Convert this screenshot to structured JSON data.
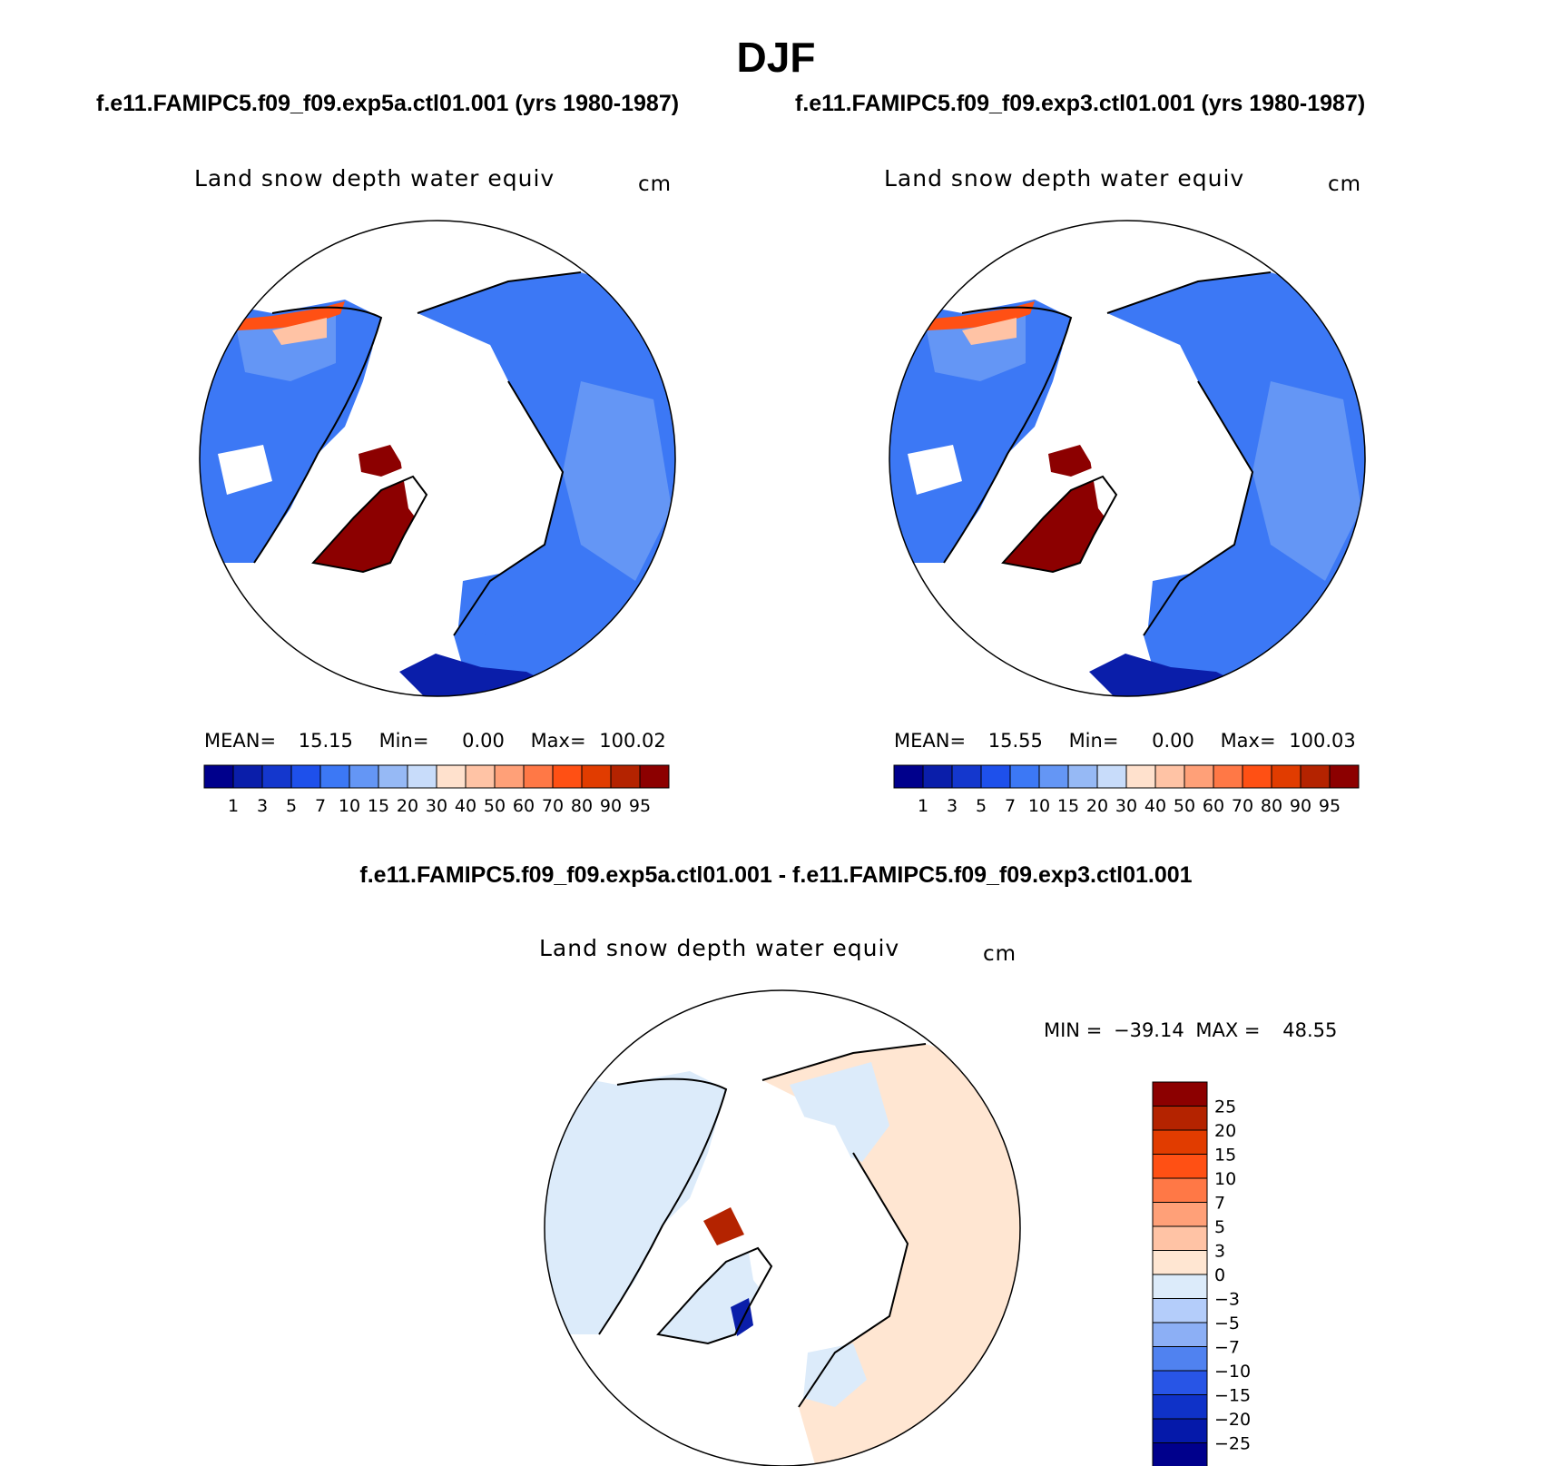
{
  "header": {
    "season": "DJF",
    "left_case": "f.e11.FAMIPC5.f09_f09.exp5a.ctl01.001 (yrs 1980-1987)",
    "right_case": "f.e11.FAMIPC5.f09_f09.exp3.ctl01.001 (yrs 1980-1987)",
    "diff_case": "f.e11.FAMIPC5.f09_f09.exp5a.ctl01.001 - f.e11.FAMIPC5.f09_f09.exp3.ctl01.001"
  },
  "panels": [
    {
      "id": "exp5a",
      "variable": "Land snow depth water equiv",
      "units": "cm",
      "stats": {
        "mean_label": "MEAN=",
        "mean": "15.15",
        "min_label": "Min=",
        "min": "0.00",
        "max_label": "Max=",
        "max": "100.02"
      }
    },
    {
      "id": "exp3",
      "variable": "Land snow depth water equiv",
      "units": "cm",
      "stats": {
        "mean_label": "MEAN=",
        "mean": "15.55",
        "min_label": "Min=",
        "min": "0.00",
        "max_label": "Max=",
        "max": "100.03"
      }
    }
  ],
  "diff_panel": {
    "variable": "Land snow depth water equiv",
    "units": "cm",
    "stats": {
      "min_label": "MIN =",
      "min": "−39.14",
      "max_label": "MAX =",
      "max": "48.55"
    }
  },
  "colorbar_abs": {
    "labels": [
      "1",
      "3",
      "5",
      "7",
      "10",
      "15",
      "20",
      "30",
      "40",
      "50",
      "60",
      "70",
      "80",
      "90",
      "95"
    ],
    "colors": [
      "#00008c",
      "#0a1eaa",
      "#1437cd",
      "#1e50eb",
      "#3c78f5",
      "#6496f5",
      "#96b9f5",
      "#c8dcfa",
      "#ffe1cd",
      "#ffc3a5",
      "#ffa078",
      "#ff7846",
      "#ff5014",
      "#e13c00",
      "#b42300",
      "#8c0000"
    ]
  },
  "colorbar_diff": {
    "labels": [
      "25",
      "20",
      "15",
      "10",
      "7",
      "5",
      "3",
      "0",
      "−3",
      "−5",
      "−7",
      "−10",
      "−15",
      "−20",
      "−25"
    ],
    "colors": [
      "#8c0000",
      "#b42300",
      "#e13c00",
      "#ff5014",
      "#ff7846",
      "#ffa078",
      "#ffc3a5",
      "#ffe6d2",
      "#dcebfa",
      "#b4cdfa",
      "#8caff5",
      "#5082f0",
      "#2855e6",
      "#0f32c8",
      "#0519aa",
      "#00008c"
    ]
  },
  "map_fields": {
    "ocean_color": "#ffffff",
    "greenland_abs": "#8c0000",
    "eurasia_abs": "#3c78f5",
    "north_america_abs": "#3c78f5",
    "himalaya_abs": "#ff5014",
    "diff_positive_land": "#ffe6d2",
    "diff_negative_land": "#dcebfa"
  }
}
